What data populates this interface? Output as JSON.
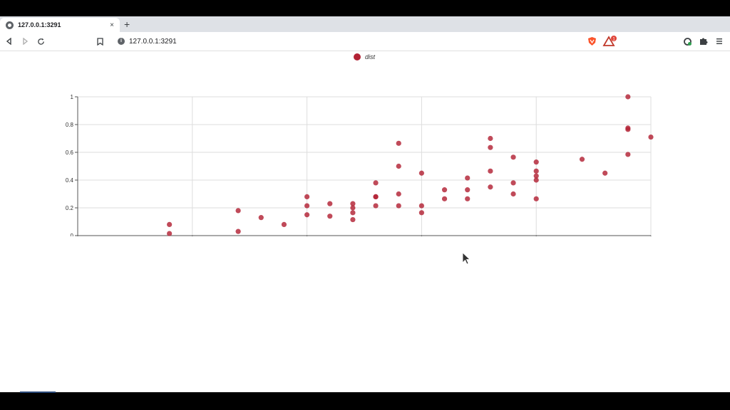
{
  "browser": {
    "tab_title": "127.0.0.1:3291",
    "tab_close": "×",
    "new_tab": "+",
    "url": "127.0.0.1:3291",
    "info_glyph": "i",
    "brave_badge": "1"
  },
  "icons": {
    "back": "back-arrow-icon",
    "forward": "forward-arrow-icon",
    "reload": "reload-icon",
    "bookmark": "bookmark-icon",
    "brave": "brave-shield-icon",
    "rewards": "brave-rewards-icon",
    "sync": "sync-icon",
    "extensions": "puzzle-icon",
    "menu": "hamburger-menu-icon",
    "cursor": "mouse-cursor-icon"
  },
  "colors": {
    "series": "#b22234",
    "grid": "#dddddd",
    "axis": "#555555"
  },
  "chart_data": {
    "type": "scatter",
    "series": [
      {
        "name": "dist",
        "points": [
          [
            4,
            0.08
          ],
          [
            4,
            0.015
          ],
          [
            7,
            0.18
          ],
          [
            7,
            0.03
          ],
          [
            8,
            0.13
          ],
          [
            9,
            0.08
          ],
          [
            10,
            0.28
          ],
          [
            10,
            0.215
          ],
          [
            10,
            0.15
          ],
          [
            11,
            0.23
          ],
          [
            11,
            0.14
          ],
          [
            12,
            0.23
          ],
          [
            12,
            0.2
          ],
          [
            12,
            0.165
          ],
          [
            12,
            0.115
          ],
          [
            13,
            0.38
          ],
          [
            13,
            0.28
          ],
          [
            13,
            0.28
          ],
          [
            13,
            0.215
          ],
          [
            14,
            0.665
          ],
          [
            14,
            0.5
          ],
          [
            14,
            0.3
          ],
          [
            14,
            0.215
          ],
          [
            15,
            0.45
          ],
          [
            15,
            0.215
          ],
          [
            15,
            0.165
          ],
          [
            16,
            0.33
          ],
          [
            16,
            0.265
          ],
          [
            17,
            0.415
          ],
          [
            17,
            0.33
          ],
          [
            17,
            0.265
          ],
          [
            18,
            0.7
          ],
          [
            18,
            0.635
          ],
          [
            18,
            0.465
          ],
          [
            18,
            0.35
          ],
          [
            19,
            0.565
          ],
          [
            19,
            0.38
          ],
          [
            19,
            0.3
          ],
          [
            20,
            0.53
          ],
          [
            20,
            0.465
          ],
          [
            20,
            0.43
          ],
          [
            20,
            0.4
          ],
          [
            20,
            0.265
          ],
          [
            22,
            0.55
          ],
          [
            23,
            0.45
          ],
          [
            24,
            1.0
          ],
          [
            24,
            0.775
          ],
          [
            24,
            0.765
          ],
          [
            24,
            0.585
          ],
          [
            25,
            0.71
          ]
        ]
      }
    ],
    "x_ticks": [
      "0",
      "5",
      "10",
      "15",
      "20",
      "25"
    ],
    "y_ticks": [
      "0",
      "0.2",
      "0.4",
      "0.6",
      "0.8",
      "1"
    ],
    "xlim": [
      0,
      25
    ],
    "ylim": [
      0,
      1
    ],
    "grid": true,
    "legend": "top-center"
  }
}
